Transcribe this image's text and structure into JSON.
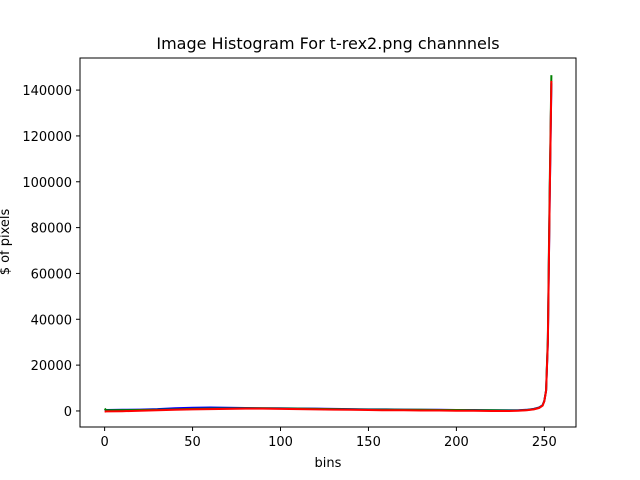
{
  "chart_data": {
    "type": "line",
    "title": "Image Histogram For t-rex2.png channnels",
    "xlabel": "bins",
    "ylabel": "$ of pixels",
    "xlim": [
      -14,
      268
    ],
    "ylim": [
      -7000,
      154000
    ],
    "x_ticks": [
      0,
      50,
      100,
      150,
      200,
      250
    ],
    "x_tick_labels": [
      "0",
      "50",
      "100",
      "150",
      "200",
      "250"
    ],
    "y_ticks": [
      0,
      20000,
      40000,
      60000,
      80000,
      100000,
      120000,
      140000
    ],
    "y_tick_labels": [
      "0",
      "20000",
      "40000",
      "60000",
      "80000",
      "100000",
      "120000",
      "140000"
    ],
    "grid": false,
    "legend": "none",
    "series": [
      {
        "color": "#0000ff",
        "x": [
          0,
          1,
          10,
          20,
          30,
          40,
          50,
          60,
          70,
          80,
          90,
          100,
          110,
          120,
          130,
          140,
          150,
          160,
          170,
          180,
          190,
          200,
          210,
          220,
          230,
          235,
          240,
          244,
          247,
          249,
          250,
          251,
          252,
          253,
          254
        ],
        "values": [
          500,
          400,
          500,
          600,
          800,
          1200,
          1400,
          1500,
          1400,
          1300,
          1200,
          1200,
          1100,
          1000,
          900,
          800,
          700,
          700,
          600,
          500,
          500,
          400,
          400,
          300,
          300,
          300,
          500,
          900,
          1500,
          2500,
          4500,
          9000,
          30000,
          90000,
          143000
        ]
      },
      {
        "color": "#008000",
        "x": [
          0,
          1,
          10,
          20,
          30,
          40,
          50,
          60,
          70,
          80,
          90,
          100,
          110,
          120,
          130,
          140,
          150,
          160,
          170,
          180,
          190,
          200,
          210,
          220,
          230,
          235,
          240,
          244,
          247,
          249,
          250,
          251,
          252,
          253,
          254
        ],
        "values": [
          1000,
          300,
          350,
          400,
          500,
          700,
          900,
          1000,
          1100,
          1200,
          1200,
          1100,
          1000,
          900,
          800,
          700,
          600,
          600,
          500,
          500,
          400,
          400,
          300,
          300,
          200,
          200,
          400,
          800,
          1400,
          2400,
          4400,
          9000,
          32000,
          95000,
          146500
        ]
      },
      {
        "color": "#ff0000",
        "x": [
          0,
          1,
          10,
          20,
          30,
          40,
          50,
          60,
          70,
          80,
          90,
          100,
          110,
          120,
          130,
          140,
          150,
          160,
          170,
          180,
          190,
          200,
          210,
          220,
          230,
          235,
          240,
          244,
          247,
          249,
          250,
          251,
          252,
          253,
          254
        ],
        "values": [
          -300,
          -200,
          -100,
          100,
          300,
          500,
          700,
          800,
          900,
          1000,
          1000,
          900,
          800,
          700,
          600,
          500,
          400,
          300,
          300,
          200,
          200,
          100,
          100,
          0,
          0,
          100,
          300,
          700,
          1300,
          2300,
          4300,
          8800,
          30000,
          90000,
          144000
        ]
      }
    ]
  }
}
